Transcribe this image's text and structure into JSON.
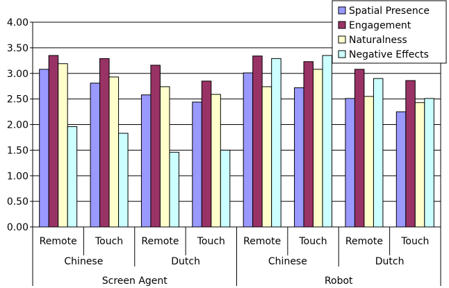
{
  "chart_data": {
    "type": "bar",
    "ylim": [
      0,
      4.0
    ],
    "y_ticks": [
      "0.00",
      "0.50",
      "1.00",
      "1.50",
      "2.00",
      "2.50",
      "3.00",
      "3.50",
      "4.00"
    ],
    "grid": true,
    "legend_position": "top-right",
    "categories": [
      [
        "Remote",
        "Chinese",
        "Screen Agent"
      ],
      [
        "Touch",
        "Chinese",
        "Screen Agent"
      ],
      [
        "Remote",
        "Dutch",
        "Screen Agent"
      ],
      [
        "Touch",
        "Dutch",
        "Screen Agent"
      ],
      [
        "Remote",
        "Chinese",
        "Robot"
      ],
      [
        "Touch",
        "Chinese",
        "Robot"
      ],
      [
        "Remote",
        "Dutch",
        "Robot"
      ],
      [
        "Touch",
        "Dutch",
        "Robot"
      ]
    ],
    "level1_labels": [
      "Remote",
      "Touch",
      "Remote",
      "Touch",
      "Remote",
      "Touch",
      "Remote",
      "Touch"
    ],
    "level2_labels": [
      "Chinese",
      "Dutch",
      "Chinese",
      "Dutch"
    ],
    "level3_labels": [
      "Screen Agent",
      "Robot"
    ],
    "series": [
      {
        "name": "Spatial Presence",
        "color": "#9999ff",
        "values": [
          3.08,
          2.81,
          2.58,
          2.44,
          3.01,
          2.72,
          2.51,
          2.25
        ]
      },
      {
        "name": "Engagement",
        "color": "#993366",
        "values": [
          3.35,
          3.29,
          3.16,
          2.85,
          3.34,
          3.23,
          3.08,
          2.86
        ]
      },
      {
        "name": "Naturalness",
        "color": "#ffffcc",
        "values": [
          3.19,
          2.93,
          2.74,
          2.59,
          2.74,
          3.08,
          2.55,
          2.43
        ]
      },
      {
        "name": "Negative Effects",
        "color": "#ccffff",
        "values": [
          1.96,
          1.83,
          1.46,
          1.5,
          3.29,
          3.35,
          2.9,
          2.51
        ]
      }
    ]
  }
}
